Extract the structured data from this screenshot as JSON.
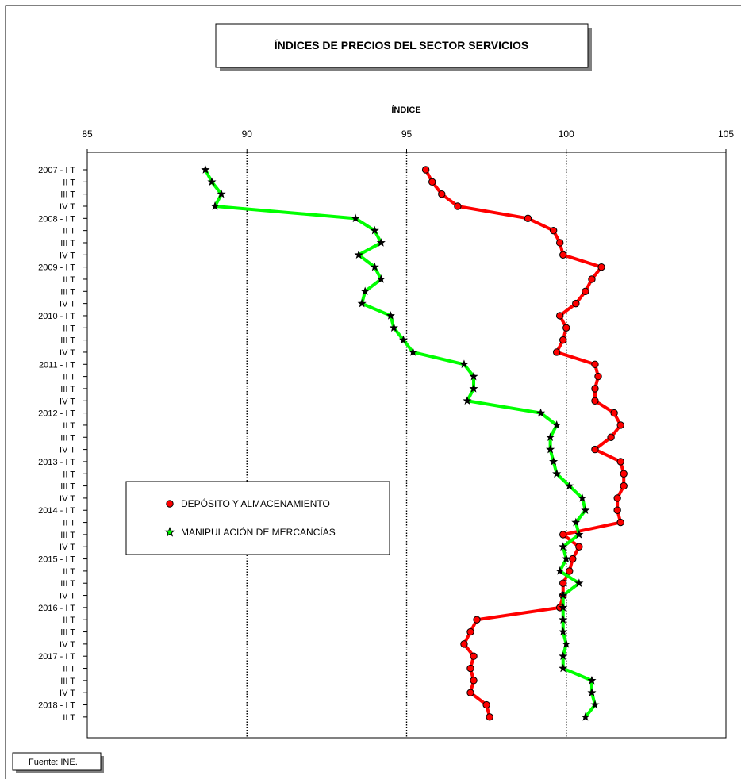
{
  "source_note": "Fuente: INE.",
  "chart_data": {
    "type": "line",
    "title": "ÍNDICES DE PRECIOS DEL SECTOR SERVICIOS",
    "xlabel": "ÍNDICE",
    "ylabel": "",
    "xlim": [
      85,
      105
    ],
    "x_ticks": [
      "85",
      "90",
      "95",
      "100",
      "105"
    ],
    "grid_x_at": [
      90,
      95,
      100
    ],
    "orientation": "horizontal-values",
    "legend_position": "middle-left",
    "categories": [
      "2007 - I T",
      "II T",
      "III T",
      "IV T",
      "2008 - I T",
      "II T",
      "III T",
      "IV T",
      "2009 - I T",
      "II T",
      "III T",
      "IV T",
      "2010 - I T",
      "II T",
      "III T",
      "IV T",
      "2011 - I T",
      "II T",
      "III T",
      "IV T",
      "2012 - I T",
      "II T",
      "III T",
      "IV T",
      "2013 - I T",
      "II T",
      "III T",
      "IV T",
      "2014 - I T",
      "II T",
      "III T",
      "IV T",
      "2015 - I T",
      "II T",
      "III T",
      "IV T",
      "2016 - I T",
      "II T",
      "III T",
      "IV T",
      "2017 - I T",
      "II T",
      "III T",
      "IV T",
      "2018 - I T",
      "II T"
    ],
    "series": [
      {
        "name": "DEPÓSITO Y ALMACENAMIENTO",
        "color": "#ff0000",
        "marker": "circle",
        "values": [
          95.6,
          95.8,
          96.1,
          96.6,
          98.8,
          99.6,
          99.8,
          99.9,
          101.1,
          100.8,
          100.6,
          100.3,
          99.8,
          100.0,
          99.9,
          99.7,
          100.9,
          101.0,
          100.9,
          100.9,
          101.5,
          101.7,
          101.4,
          100.9,
          101.7,
          101.8,
          101.8,
          101.6,
          101.6,
          101.7,
          99.9,
          100.4,
          100.2,
          100.1,
          99.9,
          99.9,
          99.8,
          97.2,
          97.0,
          96.8,
          97.1,
          97.0,
          97.1,
          97.0,
          97.5,
          97.6
        ]
      },
      {
        "name": "MANIPULACIÓN DE MERCANCÍAS",
        "color": "#00ff00",
        "marker": "star",
        "values": [
          88.7,
          88.9,
          89.2,
          89.0,
          93.4,
          94.0,
          94.2,
          93.5,
          94.0,
          94.2,
          93.7,
          93.6,
          94.5,
          94.6,
          94.9,
          95.2,
          96.8,
          97.1,
          97.1,
          96.9,
          99.2,
          99.7,
          99.5,
          99.5,
          99.6,
          99.7,
          100.1,
          100.5,
          100.6,
          100.3,
          100.4,
          99.9,
          100.0,
          99.8,
          100.4,
          99.9,
          99.9,
          99.9,
          99.9,
          100.0,
          99.9,
          99.9,
          100.8,
          100.8,
          100.9,
          100.6
        ]
      }
    ]
  }
}
